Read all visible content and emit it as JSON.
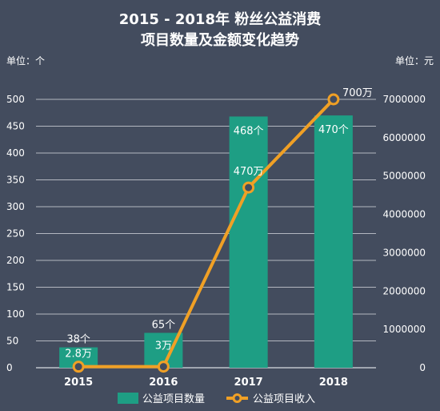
{
  "chart_data": {
    "type": "bar",
    "title": "2015 - 2018年 粉丝公益消费",
    "subtitle": "项目数量及金额变化趋势",
    "y_left_unit": "单位：个",
    "y_right_unit": "单位：元",
    "categories": [
      "2015",
      "2016",
      "2017",
      "2018"
    ],
    "ylim_left": [
      0,
      500
    ],
    "ylim_right": [
      0,
      7000000
    ],
    "y_left_ticks": [
      "0",
      "50",
      "100",
      "150",
      "200",
      "250",
      "300",
      "350",
      "400",
      "450",
      "500"
    ],
    "y_right_ticks": [
      "0",
      "1000000",
      "2000000",
      "3000000",
      "4000000",
      "5000000",
      "6000000",
      "7000000"
    ],
    "grid": true,
    "legend_position": "bottom",
    "series": [
      {
        "name": "公益项目数量",
        "type": "bar",
        "axis": "left",
        "color": "#1e9e84",
        "values": [
          38,
          65,
          468,
          470
        ],
        "labels": [
          "38个",
          "65个",
          "468个",
          "470个"
        ]
      },
      {
        "name": "公益项目收入",
        "type": "line",
        "axis": "right",
        "color": "#f0a025",
        "values": [
          28000,
          30000,
          4700000,
          7000000
        ],
        "labels": [
          "2.8万",
          "3万",
          "470万",
          "700万"
        ]
      }
    ]
  }
}
